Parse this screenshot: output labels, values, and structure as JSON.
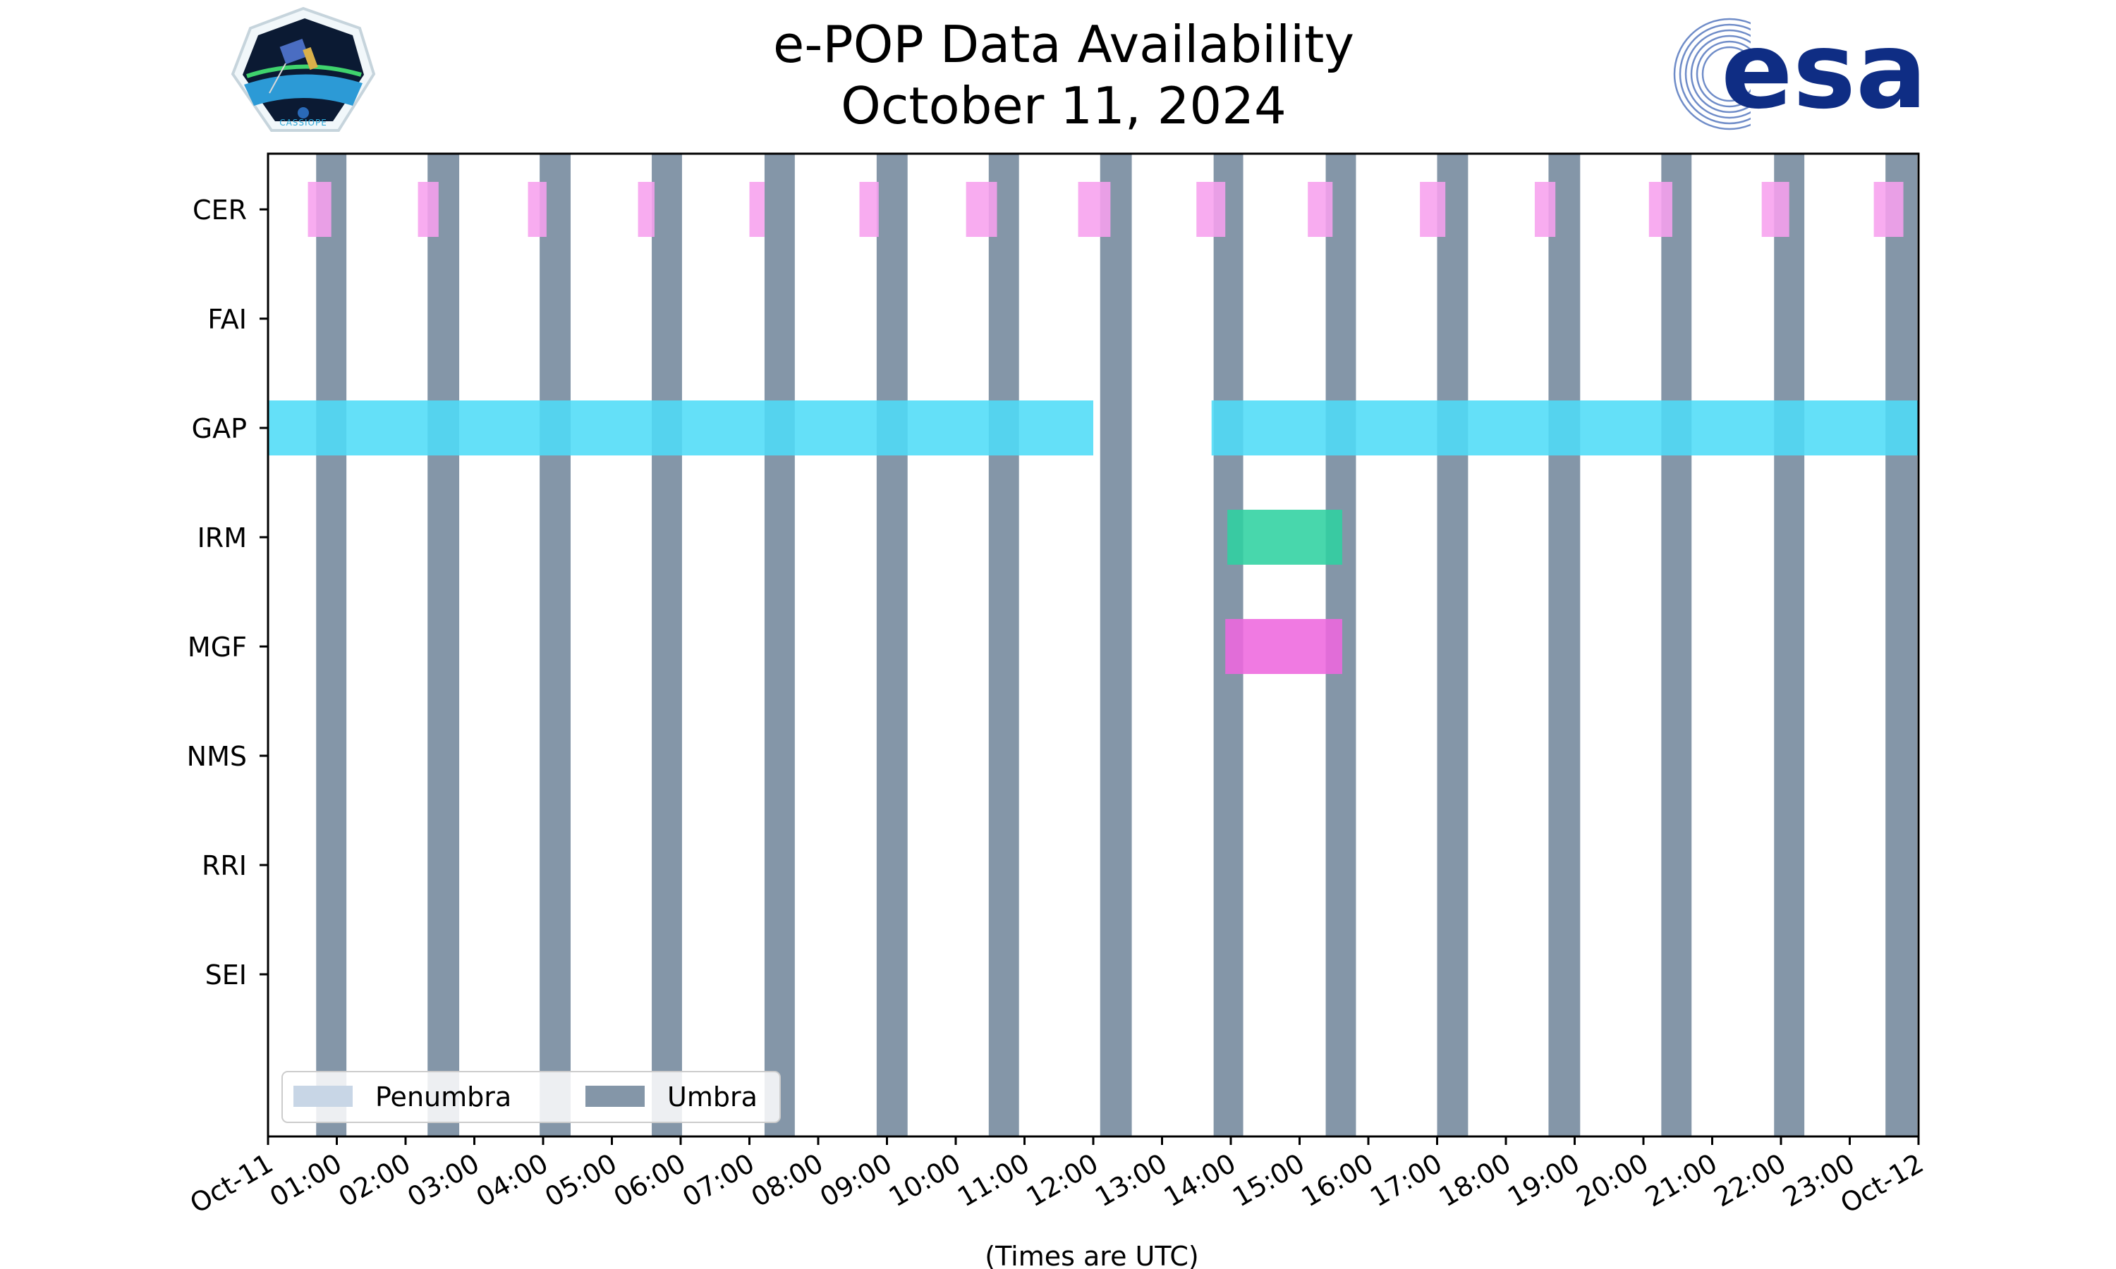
{
  "title_line1": "e-POP Data Availability",
  "title_line2": "October 11, 2024",
  "logos": {
    "left": {
      "name": "cassiope-mission-logo",
      "text": "CASSIOPE"
    },
    "right": {
      "name": "esa-logo",
      "text": "esa"
    }
  },
  "colors": {
    "umbra": "#8496a8",
    "penumbra": "#c8d6e6",
    "CER": "#f7a1ee",
    "GAP": "#4fdcf7",
    "IRM": "#2fd2a0",
    "MGF": "#ee68de"
  },
  "chart_data": {
    "type": "timeline",
    "title": "e-POP Data Availability October 11, 2024",
    "xlabel": "(Times are UTC)",
    "xlim_hours": [
      0,
      24
    ],
    "x_tick_labels": [
      "Oct-11",
      "01:00",
      "02:00",
      "03:00",
      "04:00",
      "05:00",
      "06:00",
      "07:00",
      "08:00",
      "09:00",
      "10:00",
      "11:00",
      "12:00",
      "13:00",
      "14:00",
      "15:00",
      "16:00",
      "17:00",
      "18:00",
      "19:00",
      "20:00",
      "21:00",
      "22:00",
      "23:00",
      "Oct-12"
    ],
    "instruments": [
      "CER",
      "FAI",
      "GAP",
      "IRM",
      "MGF",
      "NMS",
      "RRI",
      "SEI"
    ],
    "availability": [
      {
        "instrument": "CER",
        "intervals": [
          [
            0.58,
            0.92
          ],
          [
            2.18,
            2.48
          ],
          [
            3.78,
            4.05
          ],
          [
            5.38,
            5.62
          ],
          [
            7.0,
            7.22
          ],
          [
            8.6,
            8.88
          ],
          [
            10.15,
            10.6
          ],
          [
            11.78,
            12.25
          ],
          [
            13.5,
            13.92
          ],
          [
            15.12,
            15.48
          ],
          [
            16.75,
            17.12
          ],
          [
            18.42,
            18.72
          ],
          [
            20.08,
            20.42
          ],
          [
            21.72,
            22.12
          ],
          [
            23.35,
            23.78
          ]
        ]
      },
      {
        "instrument": "FAI",
        "intervals": []
      },
      {
        "instrument": "GAP",
        "intervals": [
          [
            0.0,
            12.0
          ],
          [
            13.72,
            24.0
          ]
        ]
      },
      {
        "instrument": "IRM",
        "intervals": [
          [
            13.95,
            15.62
          ]
        ]
      },
      {
        "instrument": "MGF",
        "intervals": [
          [
            13.92,
            15.62
          ]
        ]
      },
      {
        "instrument": "NMS",
        "intervals": []
      },
      {
        "instrument": "RRI",
        "intervals": []
      },
      {
        "instrument": "SEI",
        "intervals": []
      }
    ],
    "umbra_intervals": [
      [
        0.7,
        1.14
      ],
      [
        2.32,
        2.78
      ],
      [
        3.95,
        4.4
      ],
      [
        5.58,
        6.02
      ],
      [
        7.22,
        7.66
      ],
      [
        8.85,
        9.3
      ],
      [
        10.48,
        10.92
      ],
      [
        12.1,
        12.56
      ],
      [
        13.75,
        14.18
      ],
      [
        15.38,
        15.82
      ],
      [
        17.0,
        17.45
      ],
      [
        18.62,
        19.08
      ],
      [
        20.26,
        20.7
      ],
      [
        21.9,
        22.34
      ],
      [
        23.52,
        23.98
      ]
    ],
    "penumbra_intervals": [],
    "legend": {
      "placement": "lower-left",
      "entries": [
        "Penumbra",
        "Umbra"
      ]
    }
  }
}
